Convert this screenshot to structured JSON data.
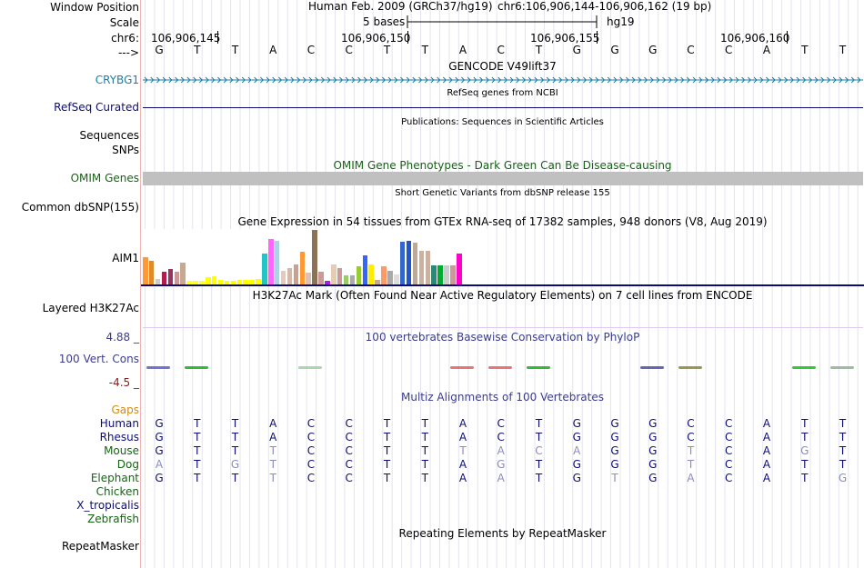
{
  "header": {
    "window_position_label": "Window Position",
    "scale_label": "Scale",
    "chr_label": "chr6:",
    "strand_label": "--->",
    "assembly_text": "Human Feb. 2009 (GRCh37/hg19)",
    "position_text": "chr6:106,906,144-106,906,162 (19 bp)",
    "scale_text": "5 bases",
    "db_text": "hg19",
    "ticks": [
      "106,906,145",
      "106,906,150",
      "106,906,155",
      "106,906,160"
    ]
  },
  "sequence": [
    "G",
    "T",
    "T",
    "A",
    "C",
    "C",
    "T",
    "T",
    "A",
    "C",
    "T",
    "G",
    "G",
    "G",
    "C",
    "C",
    "A",
    "T",
    "T"
  ],
  "tracks": {
    "gencode": {
      "title": "GENCODE V49lift37",
      "gene_label": "CRYBG1"
    },
    "refseq": {
      "title": "RefSeq genes from NCBI",
      "label": "RefSeq Curated"
    },
    "publications": {
      "title": "Publications: Sequences in Scientific Articles",
      "label": "Sequences"
    },
    "snps": {
      "label": "SNPs"
    },
    "omim": {
      "title": "OMIM Gene Phenotypes - Dark Green Can Be Disease-causing",
      "label": "OMIM Genes"
    },
    "dbsnp": {
      "title": "Short Genetic Variants from dbSNP release 155",
      "label": "Common dbSNP(155)"
    },
    "gtex": {
      "title": "Gene Expression in 54 tissues from GTEx RNA-seq of 17382 samples, 948 donors (V8, Aug 2019)",
      "label": "AIM1"
    },
    "h3k27ac": {
      "title": "H3K27Ac Mark (Often Found Near Active Regulatory Elements) on 7 cell lines from ENCODE",
      "label": "Layered H3K27Ac"
    },
    "conservation": {
      "title": "100 vertebrates Basewise Conservation by PhyloP",
      "label": "100 Vert. Cons",
      "ymax": "4.88 _",
      "ymin": "-4.5 _"
    },
    "multiz": {
      "title": "Multiz Alignments of 100 Vertebrates",
      "gaps_label": "Gaps"
    },
    "repeatmasker": {
      "title": "Repeating Elements by RepeatMasker",
      "label": "RepeatMasker"
    }
  },
  "colors": {
    "gene_blue": "#1a7fa8",
    "refseq_navy": "#0c0c78",
    "omim_green": "#146414",
    "cons_navy": "#3c3c8c",
    "cons_red": "#8c1c1c",
    "gaps_orange": "#d28a14"
  },
  "species": [
    {
      "name": "Human",
      "color": "#0c0c78",
      "bases": [
        "G",
        "T",
        "T",
        "A",
        "C",
        "C",
        "T",
        "T",
        "A",
        "C",
        "T",
        "G",
        "G",
        "G",
        "C",
        "C",
        "A",
        "T",
        "T"
      ],
      "faded": []
    },
    {
      "name": "Rhesus",
      "color": "#0c0c78",
      "bases": [
        "G",
        "T",
        "T",
        "A",
        "C",
        "C",
        "T",
        "T",
        "A",
        "C",
        "T",
        "G",
        "G",
        "G",
        "C",
        "C",
        "A",
        "T",
        "T"
      ],
      "faded": []
    },
    {
      "name": "Mouse",
      "color": "#146414",
      "bases": [
        "G",
        "T",
        "T",
        "T",
        "C",
        "C",
        "T",
        "T",
        "T",
        "A",
        "C",
        "A",
        "G",
        "G",
        "T",
        "C",
        "A",
        "G",
        "T"
      ],
      "faded": [
        3,
        8,
        9,
        10,
        11,
        14,
        17
      ]
    },
    {
      "name": "Dog",
      "color": "#146414",
      "bases": [
        "A",
        "T",
        "G",
        "T",
        "C",
        "C",
        "T",
        "T",
        "A",
        "G",
        "T",
        "G",
        "G",
        "G",
        "T",
        "C",
        "A",
        "T",
        "T"
      ],
      "faded": [
        0,
        2,
        3,
        9,
        14
      ]
    },
    {
      "name": "Elephant",
      "color": "#146414",
      "bases": [
        "G",
        "T",
        "T",
        "T",
        "C",
        "C",
        "T",
        "T",
        "A",
        "A",
        "T",
        "G",
        "T",
        "G",
        "A",
        "C",
        "A",
        "T",
        "G"
      ],
      "faded": [
        3,
        9,
        12,
        14,
        18
      ]
    },
    {
      "name": "Chicken",
      "color": "#146414",
      "bases": [],
      "faded": []
    },
    {
      "name": "X_tropicalis",
      "color": "#0c0c78",
      "bases": [],
      "faded": []
    },
    {
      "name": "Zebrafish",
      "color": "#146414",
      "bases": [],
      "faded": []
    }
  ],
  "gtex_bars": {
    "values": [
      30,
      26,
      6,
      14,
      17,
      14,
      24,
      4,
      4,
      4,
      8,
      9,
      5,
      4,
      4,
      5,
      5,
      5,
      6,
      34,
      50,
      48,
      15,
      18,
      22,
      36,
      13,
      60,
      14,
      4,
      22,
      18,
      10,
      10,
      20,
      32,
      22,
      5,
      20,
      15,
      11,
      47,
      48,
      46,
      37,
      37,
      21,
      21,
      21,
      21,
      34
    ],
    "colors": [
      "#ff9933",
      "#e08a28",
      "#cccccc",
      "#b31d4d",
      "#993366",
      "#cc9999",
      "#c8a890",
      "#ffff33",
      "#ffff33",
      "#ffff33",
      "#ffff00",
      "#ffff00",
      "#ffff00",
      "#ffff00",
      "#ffff00",
      "#ffff00",
      "#ffff00",
      "#ffff00",
      "#ffff00",
      "#22c5c5",
      "#ff66ff",
      "#aad4e0",
      "#e8c8b8",
      "#d4b8a8",
      "#cca090",
      "#ff9933",
      "#e0c0b0",
      "#8c7256",
      "#cc9999",
      "#aa22dd",
      "#e6ccb3",
      "#cc9999",
      "#99cc66",
      "#aaaaaa",
      "#99cc33",
      "#3366ff",
      "#ffee00",
      "#ccaa88",
      "#ff9966",
      "#aaaaaa",
      "#dddddd",
      "#3366cc",
      "#2255cc",
      "#bbaa99",
      "#ccb0a0",
      "#ccb0a0",
      "#2a8a7a",
      "#00aa33",
      "#cccccc",
      "#cc9999",
      "#ff00cc"
    ]
  },
  "cons_marks": [
    {
      "base": 0,
      "color": "#5050c8"
    },
    {
      "base": 1,
      "color": "#00aa00"
    },
    {
      "base": 4,
      "color": "#99cc99"
    },
    {
      "base": 8,
      "color": "#dd5555"
    },
    {
      "base": 9,
      "color": "#dd5555"
    },
    {
      "base": 10,
      "color": "#00aa00"
    },
    {
      "base": 13,
      "color": "#4040a0"
    },
    {
      "base": 14,
      "color": "#808020"
    },
    {
      "base": 17,
      "color": "#00bb00"
    },
    {
      "base": 18,
      "color": "#88aa88"
    }
  ]
}
